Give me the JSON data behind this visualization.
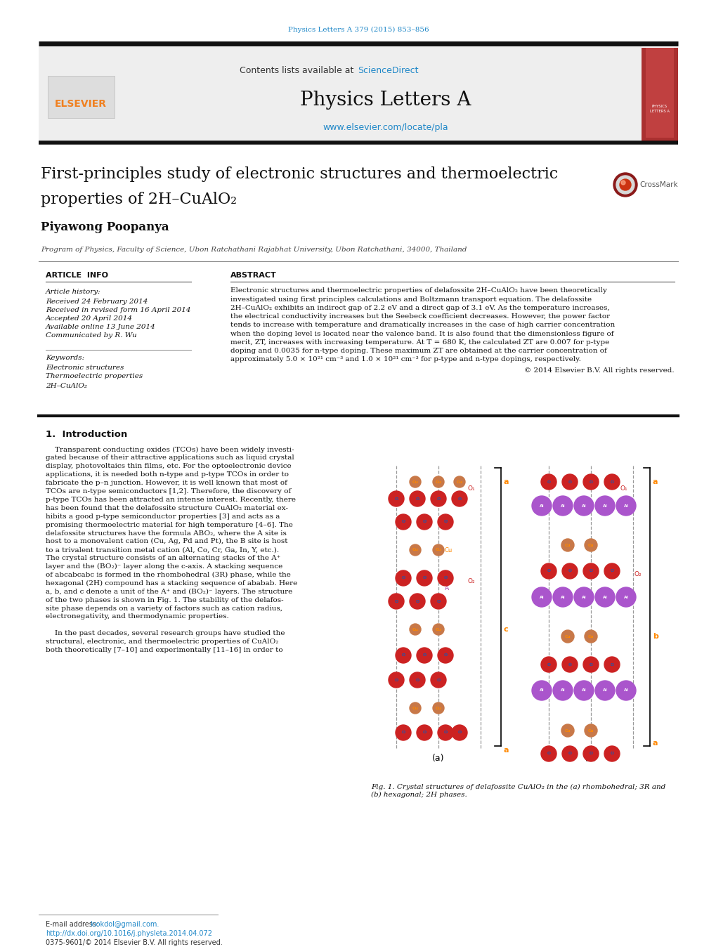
{
  "journal_ref": "Physics Letters A 379 (2015) 853–856",
  "journal_name": "Physics Letters A",
  "contents_text": "Contents lists available at ",
  "sciencedirect_text": "ScienceDirect",
  "url_text": "www.elsevier.com/locate/pla",
  "title_line1": "First-principles study of electronic structures and thermoelectric",
  "title_line2": "properties of 2H–CuAlO₂",
  "author": "Piyawong Poopanya",
  "affiliation": "Program of Physics, Faculty of Science, Ubon Ratchathani Rajabhat University, Ubon Ratchathani, 34000, Thailand",
  "article_info_header": "ARTICLE  INFO",
  "abstract_header": "ABSTRACT",
  "article_history_label": "Article history:",
  "received": "Received 24 February 2014",
  "revised": "Received in revised form 16 April 2014",
  "accepted": "Accepted 20 April 2014",
  "available": "Available online 13 June 2014",
  "communicated": "Communicated by R. Wu",
  "keywords_label": "Keywords:",
  "keyword1": "Electronic structures",
  "keyword2": "Thermoelectric properties",
  "keyword3": "2H–CuAlO₂",
  "abs_lines": [
    "Electronic structures and thermoelectric properties of delafossite 2H–CuAlO₂ have been theoretically",
    "investigated using first principles calculations and Boltzmann transport equation. The delafossite",
    "2H–CuAlO₂ exhibits an indirect gap of 2.2 eV and a direct gap of 3.1 eV. As the temperature increases,",
    "the electrical conductivity increases but the Seebeck coefficient decreases. However, the power factor",
    "tends to increase with temperature and dramatically increases in the case of high carrier concentration",
    "when the doping level is located near the valence band. It is also found that the dimensionless figure of",
    "merit, ZT, increases with increasing temperature. At T = 680 K, the calculated ZT are 0.007 for p-type",
    "doping and 0.0035 for n-type doping. These maximum ZT are obtained at the carrier concentration of",
    "approximately 5.0 × 10²¹ cm⁻³ and 1.0 × 10²¹ cm⁻³ for p-type and n-type dopings, respectively."
  ],
  "copyright": "© 2014 Elsevier B.V. All rights reserved.",
  "section1_header": "1.  Introduction",
  "intro_lines": [
    "    Transparent conducting oxides (TCOs) have been widely investi-",
    "gated because of their attractive applications such as liquid crystal",
    "display, photovoltaics thin films, etc. For the optoelectronic device",
    "applications, it is needed both n-type and p-type TCOs in order to",
    "fabricate the p–n junction. However, it is well known that most of",
    "TCOs are n-type semiconductors [1,2]. Therefore, the discovery of",
    "p-type TCOs has been attracted an intense interest. Recently, there",
    "has been found that the delafossite structure CuAlO₂ material ex-",
    "hibits a good p-type semiconductor properties [3] and acts as a",
    "promising thermoelectric material for high temperature [4–6]. The",
    "delafossite structures have the formula ABO₂, where the A site is",
    "host to a monovalent cation (Cu, Ag, Pd and Pt), the B site is host",
    "to a trivalent transition metal cation (Al, Co, Cr, Ga, In, Y, etc.).",
    "The crystal structure consists of an alternating stacks of the A⁺",
    "layer and the (BO₂)⁻ layer along the c-axis. A stacking sequence",
    "of abcabcabc is formed in the rhombohedral (3R) phase, while the",
    "hexagonal (2H) compound has a stacking sequence of ababab. Here",
    "a, b, and c denote a unit of the A⁺ and (BO₂)⁻ layers. The structure",
    "of the two phases is shown in Fig. 1. The stability of the delafos-",
    "site phase depends on a variety of factors such as cation radius,",
    "electronegativity, and thermodynamic properties.",
    "",
    "    In the past decades, several research groups have studied the",
    "structural, electronic, and thermoelectric properties of CuAlO₂",
    "both theoretically [7–10] and experimentally [11–16] in order to"
  ],
  "fig_caption": "Fig. 1. Crystal structures of delafossite CuAlO₂ in the (a) rhombohedral; 3R and\n(b) hexagonal; 2H phases.",
  "email_label": "E-mail address: ",
  "email": "lookdol@gmail.com.",
  "doi_text": "http://dx.doi.org/10.1016/j.physleta.2014.04.072",
  "issn_text": "0375-9601/© 2014 Elsevier B.V. All rights reserved.",
  "bg_color": "#ffffff",
  "elsevier_orange": "#f08020",
  "sciencedirect_blue": "#2088c8",
  "link_blue": "#2088c8"
}
